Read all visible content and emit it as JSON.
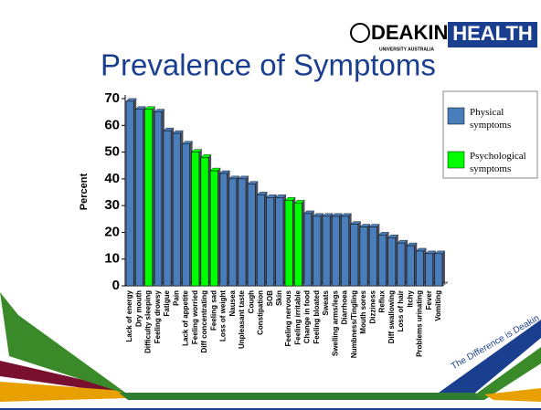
{
  "logo": {
    "name": "DEAKIN",
    "unit": "HEALTH",
    "subtitle": "UNIVERSITY AUSTRALIA"
  },
  "slogan": "The Difference is Deakin",
  "chart_data": {
    "type": "bar",
    "title": "Prevalence of Symptoms",
    "y_label": "Percent",
    "categories": [
      "Lack of energy",
      "Dry mouth",
      "Difficulty sleeping",
      "Feeling drowsy",
      "Fatigue",
      "Pain",
      "Lack of appetite",
      "Feeling worried",
      "Diff concentrating",
      "Feeling sad",
      "Loss of weight",
      "Nausea",
      "Unpleasant taste",
      "Cough",
      "Constipation",
      "SOB",
      "Skin",
      "Feeling nervous",
      "Feeling irritable",
      "Change in food",
      "Feeling bloated",
      "Sweats",
      "Swelling arms/legs",
      "Diarrhoea",
      "Numbness/Tingling",
      "Mouth sores",
      "Dizziness",
      "Reflux",
      "Diff swallowing",
      "Loss of hair",
      "Itchy",
      "Problems urinating",
      "Fever",
      "Vomiting"
    ],
    "series": [
      {
        "name": "Physical symptoms",
        "color": "#4a7ebb",
        "values": [
          69,
          66,
          null,
          65,
          58,
          57,
          53,
          null,
          null,
          null,
          42,
          40,
          40,
          38,
          34,
          33,
          33,
          null,
          null,
          27,
          26,
          26,
          26,
          26,
          23,
          22,
          22,
          19,
          18,
          16,
          15,
          13,
          12,
          12
        ]
      },
      {
        "name": "Psychological symptoms",
        "color": "#00ff00",
        "values": [
          null,
          null,
          66,
          null,
          null,
          null,
          null,
          50,
          48,
          43,
          null,
          null,
          null,
          null,
          null,
          null,
          null,
          32,
          31,
          null,
          null,
          null,
          null,
          null,
          null,
          null,
          null,
          null,
          null,
          null,
          null,
          null,
          null,
          null
        ]
      }
    ],
    "ylim": [
      0,
      70
    ],
    "yticks": [
      0,
      10,
      20,
      30,
      40,
      50,
      60,
      70
    ]
  }
}
